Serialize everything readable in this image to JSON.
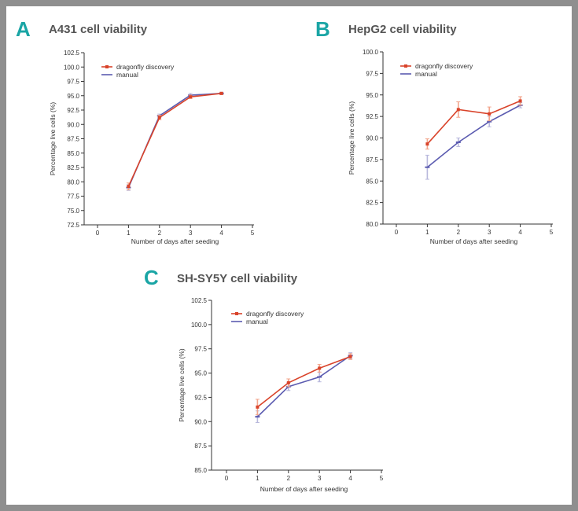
{
  "colors": {
    "frame": "#8f8f8f",
    "accent": "#1aa5a5",
    "dragonfly": "#d9432a",
    "manual": "#5b5bb0",
    "error_dragonfly": "#f2a58c",
    "error_manual": "#b8b8dc"
  },
  "chart_data": [
    {
      "type": "line",
      "letter": "A",
      "title": "A431 cell viability",
      "xlabel": "Number of days after seeding",
      "ylabel": "Percentage live cells (%)",
      "xlim": [
        0,
        5
      ],
      "ylim": [
        72.5,
        102.5
      ],
      "xticks": [
        0,
        1,
        2,
        3,
        4,
        5
      ],
      "yticks": [
        "72.5",
        "75.0",
        "77.5",
        "80.0",
        "82.5",
        "85.0",
        "87.5",
        "90.0",
        "92.5",
        "95.0",
        "97.5",
        "100.0",
        "102.5"
      ],
      "legend_position": "top-left",
      "series": [
        {
          "name": "dragonfly discovery",
          "x": [
            1,
            2,
            3,
            4
          ],
          "values": [
            79.2,
            91.2,
            94.8,
            95.4
          ],
          "errors": [
            0.6,
            0.4,
            0.3,
            0.2
          ]
        },
        {
          "name": "manual",
          "x": [
            1,
            2,
            3,
            4
          ],
          "values": [
            79.0,
            91.5,
            95.1,
            95.4
          ],
          "errors": [
            0.5,
            0.3,
            0.3,
            0.2
          ]
        }
      ]
    },
    {
      "type": "line",
      "letter": "B",
      "title": "HepG2 cell viability",
      "xlabel": "Number of days after seeding",
      "ylabel": "Percentage live cells (%)",
      "xlim": [
        0,
        5
      ],
      "ylim": [
        80.0,
        100.0
      ],
      "xticks": [
        0,
        1,
        2,
        3,
        4,
        5
      ],
      "yticks": [
        "80.0",
        "82.5",
        "85.0",
        "87.5",
        "90.0",
        "92.5",
        "95.0",
        "97.5",
        "100.0"
      ],
      "legend_position": "top-left",
      "series": [
        {
          "name": "dragonfly discovery",
          "x": [
            1,
            2,
            3,
            4
          ],
          "values": [
            89.3,
            93.3,
            92.8,
            94.3
          ],
          "errors": [
            0.6,
            0.9,
            0.8,
            0.5
          ]
        },
        {
          "name": "manual",
          "x": [
            1,
            2,
            3,
            4
          ],
          "values": [
            86.6,
            89.5,
            91.9,
            93.8
          ],
          "errors": [
            1.4,
            0.5,
            0.6,
            0.3
          ]
        }
      ]
    },
    {
      "type": "line",
      "letter": "C",
      "title": "SH-SY5Y cell viability",
      "xlabel": "Number of days after seeding",
      "ylabel": "Percentage live cells (%)",
      "xlim": [
        0,
        5
      ],
      "ylim": [
        85.0,
        102.5
      ],
      "xticks": [
        0,
        1,
        2,
        3,
        4,
        5
      ],
      "yticks": [
        "85.0",
        "87.5",
        "90.0",
        "92.5",
        "95.0",
        "97.5",
        "100.0",
        "102.5"
      ],
      "legend_position": "top-left",
      "series": [
        {
          "name": "dragonfly discovery",
          "x": [
            1,
            2,
            3,
            4
          ],
          "values": [
            91.5,
            94.0,
            95.5,
            96.7
          ],
          "errors": [
            0.8,
            0.4,
            0.4,
            0.3
          ]
        },
        {
          "name": "manual",
          "x": [
            1,
            2,
            3,
            4
          ],
          "values": [
            90.5,
            93.6,
            94.6,
            96.8
          ],
          "errors": [
            0.6,
            0.4,
            0.5,
            0.3
          ]
        }
      ]
    }
  ]
}
